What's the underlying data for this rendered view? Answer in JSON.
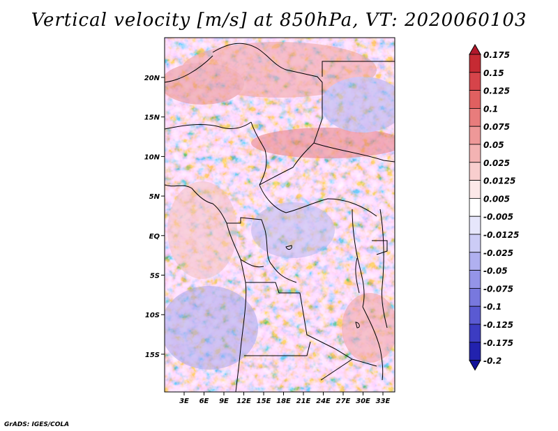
{
  "title": "Vertical velocity [m/s] at 850hPa, VT: 2020060103",
  "credit": "GrADS: IGES/COLA",
  "map": {
    "lat_labels": [
      "20N",
      "15N",
      "10N",
      "5N",
      "EQ",
      "5S",
      "10S",
      "15S"
    ],
    "lon_labels": [
      "3E",
      "6E",
      "9E",
      "12E",
      "15E",
      "18E",
      "21E",
      "24E",
      "27E",
      "30E",
      "33E"
    ]
  },
  "colorbar": {
    "labels": [
      "0.175",
      "0.15",
      "0.125",
      "0.1",
      "0.075",
      "0.05",
      "0.025",
      "0.0125",
      "0.005",
      "-0.005",
      "-0.0125",
      "-0.025",
      "-0.05",
      "-0.075",
      "-0.1",
      "-0.125",
      "-0.175",
      "-0.2"
    ],
    "colors": [
      "#b2182b",
      "#c62a33",
      "#d6444a",
      "#e06060",
      "#e87c7c",
      "#ee9898",
      "#f3b3b3",
      "#f8cece",
      "#fce8e8",
      "#ffffff",
      "#e6e6fb",
      "#ccccf6",
      "#b0b0f0",
      "#9494e8",
      "#7878de",
      "#5a5ad2",
      "#3c3cc2",
      "#2222ae",
      "#12129a"
    ]
  }
}
